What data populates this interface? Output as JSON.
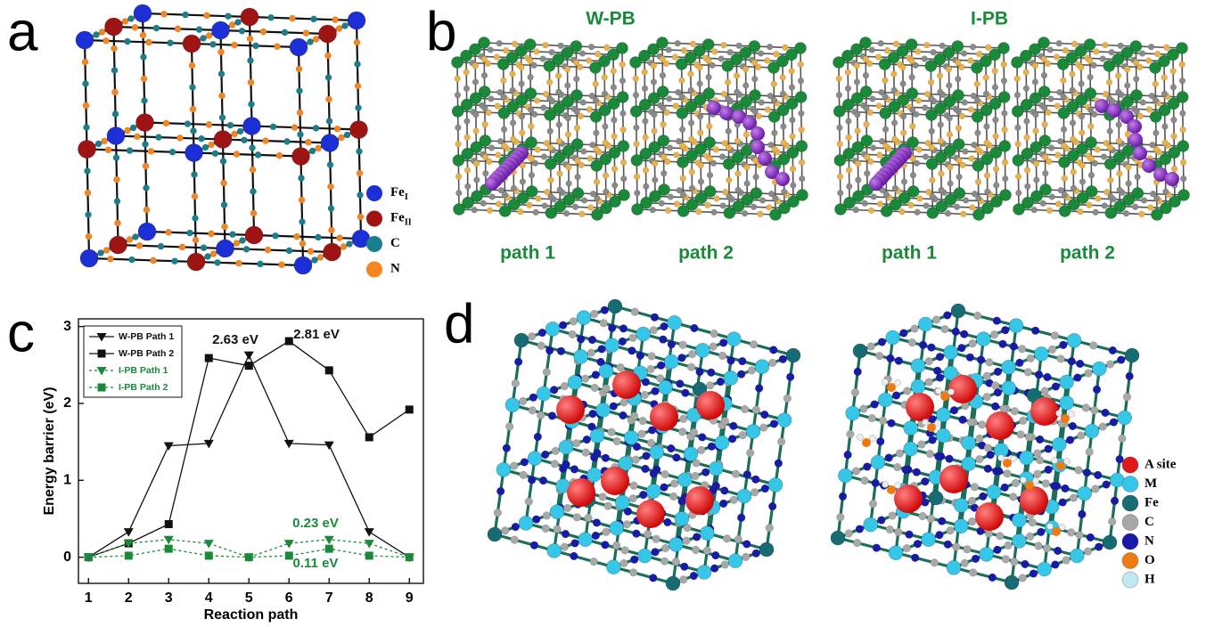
{
  "panels": {
    "a": {
      "letter": "a",
      "legend": [
        {
          "label": "Fe",
          "subscript": "I",
          "color": "#1c2fd6"
        },
        {
          "label": "Fe",
          "subscript": "II",
          "color": "#9e1414"
        },
        {
          "label": "C",
          "color": "#1a7f8c"
        },
        {
          "label": "N",
          "color": "#f5861f"
        }
      ]
    },
    "b": {
      "letter": "b",
      "titles": [
        "W-PB",
        "I-PB"
      ],
      "paths": [
        "path 1",
        "path 2",
        "path 1",
        "path 2"
      ]
    },
    "c": {
      "letter": "c"
    },
    "d": {
      "letter": "d",
      "legend": [
        {
          "label": "A site",
          "color": "#e01818"
        },
        {
          "label": "M",
          "color": "#35c6e8"
        },
        {
          "label": "Fe",
          "color": "#176b73"
        },
        {
          "label": "C",
          "color": "#a8a8a8"
        },
        {
          "label": "N",
          "color": "#1a1aa8"
        },
        {
          "label": "O",
          "color": "#ef7a12"
        },
        {
          "label": "H",
          "color": "#bfe8ef"
        }
      ]
    }
  },
  "chart_data": {
    "type": "line",
    "x_label": "Reaction path",
    "y_label": "Energy barrier (eV)",
    "x": [
      1,
      2,
      3,
      4,
      5,
      6,
      7,
      8,
      9
    ],
    "xlim": [
      0.75,
      9.35
    ],
    "xticks": [
      1,
      2,
      3,
      4,
      5,
      6,
      7,
      8,
      9
    ],
    "ylim": [
      -0.34,
      3.1
    ],
    "yticks": [
      0,
      1,
      2,
      3
    ],
    "series": [
      {
        "name": "W-PB Path 1",
        "color": "#111111",
        "marker": "triangle-down",
        "dashed": false,
        "values": [
          0,
          0.33,
          1.45,
          1.48,
          2.63,
          1.48,
          1.46,
          0.33,
          0
        ]
      },
      {
        "name": "W-PB Path 2",
        "color": "#111111",
        "marker": "square",
        "dashed": false,
        "values": [
          0,
          0.18,
          0.43,
          2.59,
          2.49,
          2.81,
          2.43,
          1.56,
          1.92
        ]
      },
      {
        "name": "I-PB Path 1",
        "color": "#1a8a3a",
        "marker": "triangle-down",
        "dashed": true,
        "values": [
          0,
          0.18,
          0.23,
          0.18,
          0,
          0.18,
          0.23,
          0.18,
          0
        ]
      },
      {
        "name": "I-PB Path 2",
        "color": "#1a8a3a",
        "marker": "square",
        "dashed": true,
        "values": [
          0,
          0.02,
          0.11,
          0.02,
          0,
          0.02,
          0.11,
          0.02,
          0
        ]
      }
    ],
    "annotations": [
      {
        "text": "2.63 eV",
        "color": "#111111"
      },
      {
        "text": "2.81 eV",
        "color": "#111111"
      },
      {
        "text": "0.23 eV",
        "color": "#1a8a3a"
      },
      {
        "text": "0.11 eV",
        "color": "#1a8a3a"
      }
    ]
  }
}
